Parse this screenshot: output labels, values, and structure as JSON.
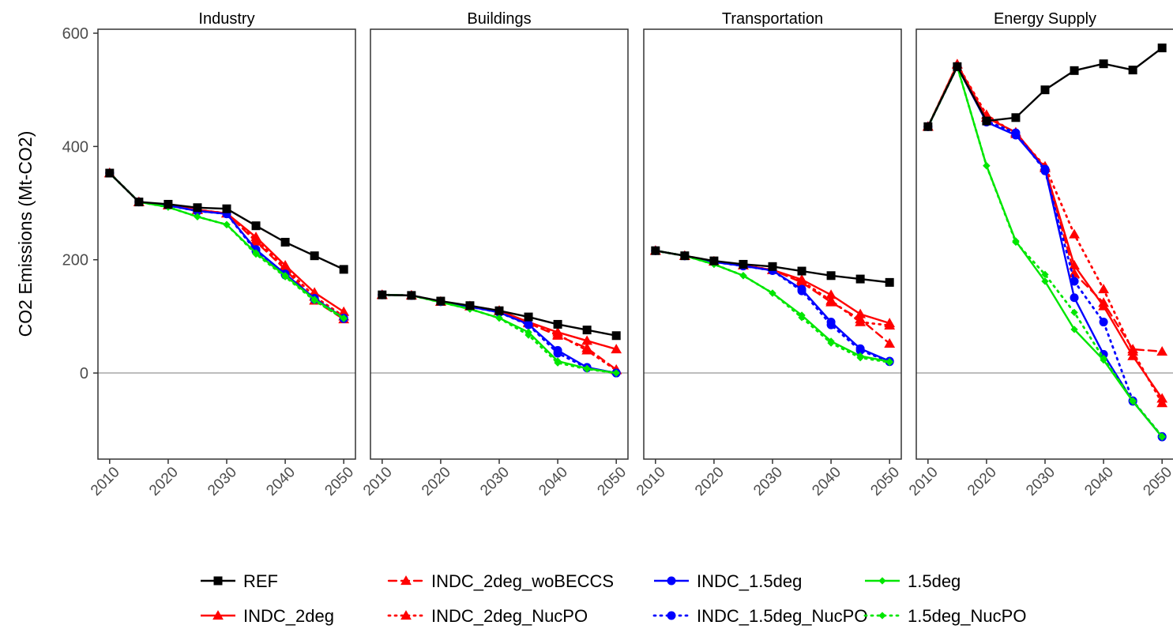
{
  "chart_data": {
    "type": "line",
    "ylabel": "CO2 Emissions (Mt-CO2)",
    "xlabel": "",
    "ylim": [
      -150,
      610
    ],
    "xlim": [
      2008,
      2052
    ],
    "x": [
      2010,
      2015,
      2020,
      2025,
      2030,
      2035,
      2040,
      2045,
      2050
    ],
    "x_tick_labels": [
      "2010",
      "2020",
      "2030",
      "2040",
      "2050"
    ],
    "y_tick_labels": [
      "0",
      "200",
      "400",
      "600"
    ],
    "reference_line": 0,
    "grid": false,
    "legend_position": "bottom",
    "series_styles": [
      {
        "name": "REF",
        "color": "#000000",
        "dash": "solid",
        "marker": "square"
      },
      {
        "name": "INDC_2deg",
        "color": "#ff0000",
        "dash": "solid",
        "marker": "triangle"
      },
      {
        "name": "INDC_2deg_woBECCS",
        "color": "#ff0000",
        "dash": "dashed",
        "marker": "triangle"
      },
      {
        "name": "INDC_2deg_NucPO",
        "color": "#ff0000",
        "dash": "dotted",
        "marker": "triangle"
      },
      {
        "name": "INDC_1.5deg",
        "color": "#0000ff",
        "dash": "solid",
        "marker": "circle"
      },
      {
        "name": "INDC_1.5deg_NucPO",
        "color": "#0000ff",
        "dash": "dotted",
        "marker": "circle"
      },
      {
        "name": "1.5deg",
        "color": "#00e600",
        "dash": "solid",
        "marker": "diamond"
      },
      {
        "name": "1.5deg_NucPO",
        "color": "#00e600",
        "dash": "dotted",
        "marker": "diamond"
      }
    ],
    "panels": [
      {
        "title": "Industry",
        "series": [
          {
            "name": "REF",
            "values": [
              353,
              302,
              298,
              292,
              290,
              260,
              231,
              207,
              183
            ]
          },
          {
            "name": "INDC_2deg",
            "values": [
              353,
              302,
              296,
              288,
              282,
              240,
              190,
              142,
              108
            ]
          },
          {
            "name": "INDC_2deg_woBECCS",
            "values": [
              353,
              302,
              296,
              288,
              282,
              232,
              183,
              128,
              95
            ]
          },
          {
            "name": "INDC_2deg_NucPO",
            "values": [
              353,
              302,
              296,
              288,
              282,
              235,
              186,
              135,
              100
            ]
          },
          {
            "name": "INDC_1.5deg",
            "values": [
              353,
              302,
              296,
              286,
              281,
              218,
              175,
              132,
              97
            ]
          },
          {
            "name": "INDC_1.5deg_NucPO",
            "values": [
              353,
              302,
              296,
              286,
              281,
              215,
              173,
              130,
              96
            ]
          },
          {
            "name": "1.5deg",
            "values": [
              353,
              302,
              293,
              276,
              262,
              212,
              172,
              130,
              97
            ]
          },
          {
            "name": "1.5deg_NucPO",
            "values": [
              353,
              302,
              293,
              276,
              262,
              210,
              170,
              128,
              96
            ]
          }
        ]
      },
      {
        "title": "Buildings",
        "series": [
          {
            "name": "REF",
            "values": [
              138,
              137,
              127,
              119,
              110,
              99,
              86,
              76,
              66
            ]
          },
          {
            "name": "INDC_2deg",
            "values": [
              138,
              137,
              126,
              118,
              110,
              90,
              72,
              57,
              42
            ]
          },
          {
            "name": "INDC_2deg_woBECCS",
            "values": [
              138,
              137,
              126,
              118,
              110,
              88,
              66,
              44,
              6
            ]
          },
          {
            "name": "INDC_2deg_NucPO",
            "values": [
              138,
              137,
              126,
              118,
              110,
              89,
              68,
              40,
              5
            ]
          },
          {
            "name": "INDC_1.5deg",
            "values": [
              138,
              137,
              126,
              117,
              107,
              86,
              40,
              10,
              0
            ]
          },
          {
            "name": "INDC_1.5deg_NucPO",
            "values": [
              138,
              137,
              126,
              117,
              107,
              85,
              35,
              9,
              0
            ]
          },
          {
            "name": "1.5deg",
            "values": [
              138,
              137,
              125,
              113,
              97,
              72,
              21,
              8,
              0
            ]
          },
          {
            "name": "1.5deg_NucPO",
            "values": [
              138,
              137,
              125,
              113,
              97,
              67,
              18,
              7,
              0
            ]
          }
        ]
      },
      {
        "title": "Transportation",
        "series": [
          {
            "name": "REF",
            "values": [
              216,
              207,
              198,
              192,
              188,
              180,
              172,
              166,
              160
            ]
          },
          {
            "name": "INDC_2deg",
            "values": [
              216,
              207,
              197,
              190,
              182,
              165,
              138,
              104,
              88
            ]
          },
          {
            "name": "INDC_2deg_woBECCS",
            "values": [
              216,
              207,
              197,
              190,
              182,
              160,
              125,
              95,
              52
            ]
          },
          {
            "name": "INDC_2deg_NucPO",
            "values": [
              216,
              207,
              197,
              190,
              182,
              162,
              128,
              90,
              84
            ]
          },
          {
            "name": "INDC_1.5deg",
            "values": [
              216,
              207,
              196,
              189,
              181,
              148,
              90,
              43,
              21
            ]
          },
          {
            "name": "INDC_1.5deg_NucPO",
            "values": [
              216,
              207,
              196,
              189,
              181,
              145,
              85,
              40,
              20
            ]
          },
          {
            "name": "1.5deg",
            "values": [
              216,
              207,
              192,
              172,
              141,
              102,
              56,
              30,
              20
            ]
          },
          {
            "name": "1.5deg_NucPO",
            "values": [
              216,
              207,
              192,
              172,
              141,
              98,
              53,
              27,
              19
            ]
          }
        ]
      },
      {
        "title": "Energy Supply",
        "series": [
          {
            "name": "REF",
            "values": [
              435,
              541,
              445,
              451,
              500,
              534,
              546,
              535,
              574
            ]
          },
          {
            "name": "INDC_2deg",
            "values": [
              435,
              545,
              451,
              425,
              362,
              190,
              118,
              30,
              -45
            ]
          },
          {
            "name": "INDC_2deg_woBECCS",
            "values": [
              435,
              545,
              451,
              425,
              362,
              176,
              124,
              42,
              38
            ]
          },
          {
            "name": "INDC_2deg_NucPO",
            "values": [
              435,
              545,
              456,
              422,
              365,
              245,
              148,
              38,
              -53
            ]
          },
          {
            "name": "INDC_1.5deg",
            "values": [
              435,
              541,
              443,
              420,
              360,
              133,
              33,
              -50,
              -113
            ]
          },
          {
            "name": "INDC_1.5deg_NucPO",
            "values": [
              435,
              541,
              445,
              424,
              357,
              162,
              90,
              -49,
              -112
            ]
          },
          {
            "name": "1.5deg",
            "values": [
              435,
              541,
              366,
              233,
              162,
              77,
              23,
              -50,
              -113
            ]
          },
          {
            "name": "1.5deg_NucPO",
            "values": [
              435,
              541,
              366,
              231,
              174,
              107,
              26,
              -49,
              -112
            ]
          }
        ]
      }
    ]
  }
}
